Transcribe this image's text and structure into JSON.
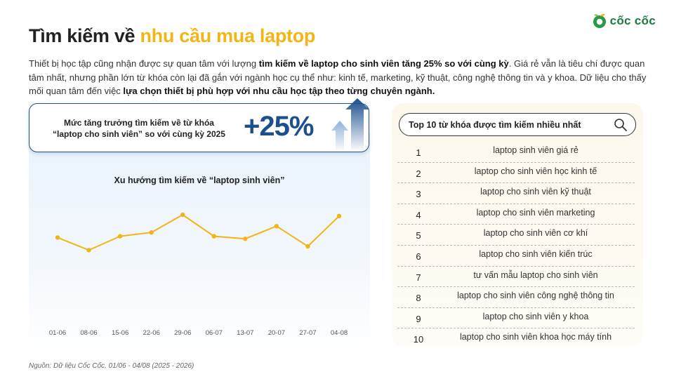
{
  "brand": {
    "name": "cốc cốc"
  },
  "title": {
    "main": "Tìm kiếm về ",
    "accent": "nhu cầu mua laptop"
  },
  "intro": {
    "p1": "Thiết bị học tập cũng nhận được sự quan tâm với lượng ",
    "b1": "tìm kiếm về laptop cho sinh viên tăng 25% so với cùng kỳ",
    "p2": ". Giá rẻ vẫn là tiêu chí được quan tâm nhất, nhưng phần lớn từ khóa còn lại đã gắn với ngành học cụ thể như: kinh tế, marketing, kỹ thuật, công nghệ thông tin và y khoa. Dữ liệu cho thấy mối quan tâm đến việc ",
    "b2": "lựa chọn thiết bị phù hợp với nhu cầu học tập theo từng chuyên ngành."
  },
  "stat": {
    "line1": "Mức tăng trưởng tìm kiếm về từ khóa",
    "line2": "“laptop cho sinh viên” so với cùng kỳ 2025",
    "value": "+25%"
  },
  "chart_data": {
    "type": "line",
    "title": "Xu hướng tìm kiếm về “laptop sinh viên”",
    "categories": [
      "01-06",
      "08-06",
      "15-06",
      "22-06",
      "29-06",
      "06-07",
      "13-07",
      "20-07",
      "27-07",
      "04-08"
    ],
    "series": [
      {
        "values": [
          62,
          52,
          63,
          66,
          80,
          63,
          61,
          71,
          55,
          79
        ]
      }
    ],
    "ylim": [
      0,
      100
    ],
    "grid": false,
    "line_color": "#f2b516"
  },
  "ranking": {
    "title": "Top 10 từ khóa được tìm kiếm nhiều nhất",
    "items": [
      {
        "rank": "1",
        "keyword": "laptop sinh viên giá rẻ"
      },
      {
        "rank": "2",
        "keyword": "laptop cho sinh viên học kinh tế"
      },
      {
        "rank": "3",
        "keyword": "laptop cho sinh viên kỹ thuật"
      },
      {
        "rank": "4",
        "keyword": "laptop cho sinh viên marketing"
      },
      {
        "rank": "5",
        "keyword": "laptop cho sinh viên cơ khí"
      },
      {
        "rank": "6",
        "keyword": "laptop cho sinh viên kiến trúc"
      },
      {
        "rank": "7",
        "keyword": "tư vấn mẫu laptop cho sinh viên"
      },
      {
        "rank": "8",
        "keyword": "laptop cho sinh viên công nghệ thông tin"
      },
      {
        "rank": "9",
        "keyword": "laptop cho sinh viên y khoa"
      },
      {
        "rank": "10",
        "keyword": "laptop cho sinh viên khoa học máy tính"
      }
    ]
  },
  "source": "Nguồn: Dữ liệu Cốc Cốc, 01/06 - 04/08 (2025 - 2026)",
  "colors": {
    "accent": "#f2b516",
    "primary": "#1c4f8e",
    "brand_green": "#1a7a3f"
  }
}
